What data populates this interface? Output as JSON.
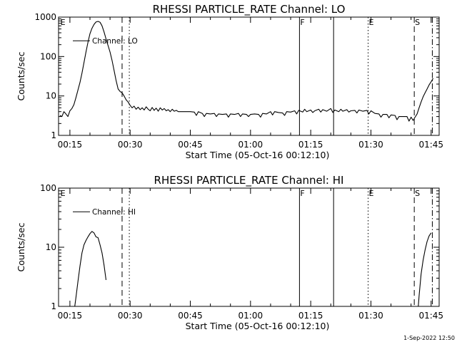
{
  "chart_data": [
    {
      "type": "line",
      "title": "RHESSI PARTICLE_RATE Channel: LO",
      "xlabel": "Start Time (05-Oct-16 00:12:10)",
      "ylabel": "Counts/sec",
      "yscale": "log",
      "xlim": [
        12.17,
        107.0
      ],
      "ylim": [
        1,
        1000
      ],
      "xticks": [
        15,
        30,
        45,
        60,
        75,
        90,
        105
      ],
      "xtick_labels": [
        "00:15",
        "00:30",
        "00:45",
        "01:00",
        "01:15",
        "01:30",
        "01:45"
      ],
      "yticks": [
        1,
        10,
        100,
        1000
      ],
      "ytick_labels": [
        "1",
        "10",
        "100",
        "1000"
      ],
      "legend": "Channel: LO",
      "series": [
        {
          "name": "Channel: LO",
          "segments": [
            [
              [
                12.5,
                3.2
              ],
              [
                13.0,
                3.0
              ],
              [
                13.5,
                4.0
              ],
              [
                14.0,
                3.5
              ],
              [
                14.5,
                3.0
              ],
              [
                15.0,
                4.2
              ],
              [
                15.5,
                4.8
              ],
              [
                16.0,
                6.0
              ],
              [
                16.5,
                9.0
              ],
              [
                17.0,
                14.0
              ],
              [
                17.5,
                22.0
              ],
              [
                18.0,
                38.0
              ],
              [
                18.5,
                70.0
              ],
              [
                19.0,
                130.0
              ],
              [
                19.5,
                230.0
              ],
              [
                20.0,
                380.0
              ],
              [
                20.5,
                520.0
              ],
              [
                21.0,
                650.0
              ],
              [
                21.5,
                750.0
              ],
              [
                22.0,
                780.0
              ],
              [
                22.5,
                740.0
              ],
              [
                23.0,
                600.0
              ],
              [
                23.5,
                420.0
              ],
              [
                24.0,
                280.0
              ],
              [
                24.5,
                190.0
              ],
              [
                25.0,
                130.0
              ],
              [
                25.5,
                80.0
              ],
              [
                26.0,
                45.0
              ],
              [
                26.5,
                25.0
              ],
              [
                27.0,
                15.0
              ],
              [
                27.5,
                13.0
              ],
              [
                28.0,
                12.0
              ],
              [
                28.5,
                10.0
              ],
              [
                29.0,
                8.0
              ],
              [
                29.5,
                7.0
              ],
              [
                30.0,
                5.8
              ],
              [
                30.5,
                5.0
              ],
              [
                31.0,
                5.5
              ],
              [
                31.5,
                4.6
              ],
              [
                32.0,
                5.2
              ],
              [
                32.5,
                4.5
              ],
              [
                33.0,
                5.0
              ],
              [
                33.5,
                4.4
              ],
              [
                34.0,
                5.3
              ],
              [
                34.5,
                4.6
              ],
              [
                35.0,
                4.2
              ],
              [
                35.5,
                5.1
              ],
              [
                36.0,
                4.3
              ],
              [
                36.5,
                4.9
              ],
              [
                37.0,
                4.1
              ],
              [
                37.5,
                5.0
              ],
              [
                38.0,
                4.4
              ],
              [
                38.5,
                4.8
              ],
              [
                39.0,
                4.2
              ],
              [
                39.5,
                4.5
              ],
              [
                40.0,
                4.0
              ],
              [
                40.5,
                4.6
              ],
              [
                41.0,
                4.1
              ],
              [
                41.5,
                4.3
              ],
              [
                42.0,
                4.0
              ],
              [
                43.0,
                4.0
              ],
              [
                44.0,
                4.0
              ],
              [
                45.0,
                4.0
              ],
              [
                46.0,
                3.9
              ],
              [
                46.5,
                3.2
              ],
              [
                47.0,
                4.0
              ],
              [
                48.0,
                3.6
              ],
              [
                48.5,
                3.0
              ],
              [
                49.0,
                3.6
              ],
              [
                50.0,
                3.5
              ],
              [
                51.0,
                3.6
              ],
              [
                51.5,
                3.0
              ],
              [
                52.0,
                3.5
              ],
              [
                53.0,
                3.4
              ],
              [
                54.0,
                3.5
              ],
              [
                54.5,
                2.9
              ],
              [
                55.0,
                3.5
              ],
              [
                56.0,
                3.4
              ],
              [
                57.0,
                3.6
              ],
              [
                57.5,
                3.0
              ],
              [
                58.0,
                3.5
              ],
              [
                59.0,
                3.4
              ],
              [
                59.5,
                3.0
              ],
              [
                60.0,
                3.4
              ],
              [
                61.0,
                3.5
              ],
              [
                62.0,
                3.4
              ],
              [
                62.5,
                2.9
              ],
              [
                63.0,
                3.6
              ],
              [
                64.0,
                3.5
              ],
              [
                65.0,
                4.0
              ],
              [
                65.5,
                3.3
              ],
              [
                66.0,
                4.0
              ],
              [
                67.0,
                3.8
              ],
              [
                68.0,
                3.7
              ],
              [
                68.5,
                3.2
              ],
              [
                69.0,
                4.0
              ],
              [
                70.0,
                3.9
              ],
              [
                71.0,
                4.2
              ],
              [
                71.5,
                3.5
              ],
              [
                72.0,
                4.3
              ],
              [
                73.0,
                3.9
              ],
              [
                73.5,
                4.6
              ],
              [
                74.0,
                4.0
              ],
              [
                75.0,
                4.4
              ],
              [
                75.5,
                3.8
              ],
              [
                76.0,
                4.2
              ],
              [
                77.0,
                4.6
              ],
              [
                77.5,
                3.9
              ],
              [
                78.0,
                4.5
              ],
              [
                79.0,
                4.1
              ],
              [
                80.0,
                4.8
              ],
              [
                80.5,
                3.8
              ],
              [
                81.0,
                4.4
              ],
              [
                82.0,
                4.0
              ],
              [
                82.5,
                4.6
              ],
              [
                83.0,
                4.1
              ],
              [
                84.0,
                4.5
              ],
              [
                84.5,
                3.9
              ],
              [
                85.0,
                4.2
              ],
              [
                86.0,
                4.3
              ],
              [
                86.5,
                3.7
              ],
              [
                87.0,
                4.4
              ],
              [
                88.0,
                4.1
              ],
              [
                89.0,
                4.3
              ],
              [
                89.5,
                3.5
              ],
              [
                90.0,
                4.2
              ],
              [
                91.0,
                3.6
              ],
              [
                92.0,
                3.5
              ],
              [
                92.5,
                2.9
              ],
              [
                93.0,
                3.4
              ],
              [
                94.0,
                3.4
              ],
              [
                94.5,
                2.8
              ],
              [
                95.0,
                3.3
              ],
              [
                96.0,
                3.2
              ],
              [
                96.5,
                2.5
              ],
              [
                97.0,
                3.0
              ],
              [
                98.0,
                3.0
              ],
              [
                99.0,
                3.0
              ],
              [
                99.5,
                2.3
              ],
              [
                100.0,
                2.9
              ],
              [
                100.5,
                2.4
              ],
              [
                101.0,
                2.9
              ],
              [
                101.5,
                3.5
              ],
              [
                102.0,
                5.0
              ],
              [
                102.5,
                7.0
              ],
              [
                103.0,
                9.5
              ],
              [
                103.5,
                12.0
              ],
              [
                104.0,
                15.0
              ],
              [
                104.5,
                19.0
              ],
              [
                105.0,
                23.0
              ],
              [
                105.5,
                28.0
              ]
            ]
          ]
        }
      ],
      "vlines": [
        {
          "x": 28.0,
          "style": "dashed",
          "label": ""
        },
        {
          "x": 29.8,
          "style": "dotted",
          "label": ""
        },
        {
          "x": 12.45,
          "style": "none",
          "label": "E"
        },
        {
          "x": 72.2,
          "style": "solid",
          "label": "F"
        },
        {
          "x": 80.7,
          "style": "solid",
          "label": ""
        },
        {
          "x": 89.3,
          "style": "dotted",
          "label": "E"
        },
        {
          "x": 100.8,
          "style": "dashed",
          "label": "S"
        },
        {
          "x": 105.3,
          "style": "dashdot",
          "label": ""
        }
      ]
    },
    {
      "type": "line",
      "title": "RHESSI PARTICLE_RATE Channel: HI",
      "xlabel": "Start Time (05-Oct-16 00:12:10)",
      "ylabel": "Counts/sec",
      "yscale": "log",
      "xlim": [
        12.17,
        107.0
      ],
      "ylim": [
        1,
        100
      ],
      "xticks": [
        15,
        30,
        45,
        60,
        75,
        90,
        105
      ],
      "xtick_labels": [
        "00:15",
        "00:30",
        "00:45",
        "01:00",
        "01:15",
        "01:30",
        "01:45"
      ],
      "yticks": [
        1,
        10,
        100
      ],
      "ytick_labels": [
        "1",
        "10",
        "100"
      ],
      "legend": "Channel: HI",
      "series": [
        {
          "name": "Channel: HI",
          "segments": [
            [
              [
                16.2,
                1.0
              ],
              [
                16.5,
                1.4
              ],
              [
                17.0,
                2.6
              ],
              [
                17.5,
                4.8
              ],
              [
                18.0,
                8.0
              ],
              [
                18.5,
                11.0
              ],
              [
                19.0,
                13.0
              ],
              [
                19.5,
                15.0
              ],
              [
                20.0,
                17.0
              ],
              [
                20.5,
                18.5
              ],
              [
                21.0,
                17.5
              ],
              [
                21.5,
                15.0
              ],
              [
                22.0,
                14.5
              ],
              [
                22.5,
                11.0
              ],
              [
                23.0,
                8.0
              ],
              [
                23.5,
                5.0
              ],
              [
                24.0,
                2.8
              ]
            ],
            [
              [
                101.8,
                1.0
              ],
              [
                102.0,
                1.5
              ],
              [
                102.5,
                3.5
              ],
              [
                103.0,
                6.0
              ],
              [
                103.5,
                9.0
              ],
              [
                104.0,
                12.5
              ],
              [
                104.5,
                15.5
              ],
              [
                105.0,
                17.5
              ]
            ]
          ]
        }
      ],
      "vlines": [
        {
          "x": 28.0,
          "style": "dashed",
          "label": ""
        },
        {
          "x": 29.8,
          "style": "dotted",
          "label": ""
        },
        {
          "x": 12.45,
          "style": "none",
          "label": "E"
        },
        {
          "x": 72.2,
          "style": "solid",
          "label": "F"
        },
        {
          "x": 80.7,
          "style": "solid",
          "label": ""
        },
        {
          "x": 89.3,
          "style": "dotted",
          "label": "E"
        },
        {
          "x": 100.8,
          "style": "dashed",
          "label": "S"
        },
        {
          "x": 105.3,
          "style": "dashdot",
          "label": ""
        }
      ]
    }
  ],
  "footer": {
    "timestamp": "1-Sep-2022 12:50"
  }
}
